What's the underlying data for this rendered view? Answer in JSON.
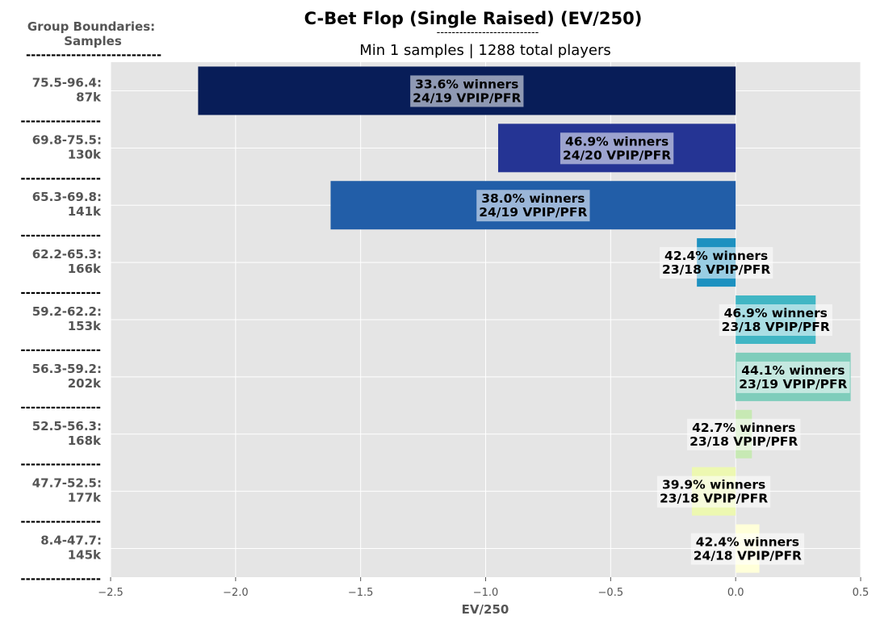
{
  "chart_data": {
    "type": "bar",
    "orientation": "horizontal",
    "title": "C-Bet Flop (Single Raised) (EV/250)",
    "title_underline": "---------------------------",
    "subtitle": "Min 1 samples | 1288 total players",
    "ylabel_title": "Group Boundaries:",
    "ylabel_subtitle": "Samples",
    "ylabel_underline": "---------------------------",
    "separator": "----------------",
    "xlabel": "EV/250",
    "xlim": [
      -2.5,
      0.5
    ],
    "xticks": [
      "-2.5",
      "-2.0",
      "-1.5",
      "-1.0",
      "-0.5",
      "0.0",
      "0.5"
    ],
    "grid": true,
    "categories": [
      {
        "range": "75.5-96.4:",
        "samples": "87k",
        "value": -2.15,
        "color": "#081d58",
        "winners": "33.6% winners",
        "vpip": "24/19 VPIP/PFR"
      },
      {
        "range": "69.8-75.5:",
        "samples": "130k",
        "value": -0.95,
        "color": "#253494",
        "winners": "46.9% winners",
        "vpip": "24/20 VPIP/PFR"
      },
      {
        "range": "65.3-69.8:",
        "samples": "141k",
        "value": -1.62,
        "color": "#225ea8",
        "winners": "38.0% winners",
        "vpip": "24/19 VPIP/PFR"
      },
      {
        "range": "62.2-65.3:",
        "samples": "166k",
        "value": -0.155,
        "color": "#1d91c0",
        "winners": "42.4% winners",
        "vpip": "23/18 VPIP/PFR"
      },
      {
        "range": "59.2-62.2:",
        "samples": "153k",
        "value": 0.32,
        "color": "#41b6c4",
        "winners": "46.9% winners",
        "vpip": "23/18 VPIP/PFR"
      },
      {
        "range": "56.3-59.2:",
        "samples": "202k",
        "value": 0.46,
        "color": "#7fcdbb",
        "winners": "44.1% winners",
        "vpip": "23/19 VPIP/PFR"
      },
      {
        "range": "52.5-56.3:",
        "samples": "168k",
        "value": 0.065,
        "color": "#c7e9b4",
        "winners": "42.7% winners",
        "vpip": "23/18 VPIP/PFR"
      },
      {
        "range": "47.7-52.5:",
        "samples": "177k",
        "value": -0.175,
        "color": "#edf8b1",
        "winners": "39.9% winners",
        "vpip": "23/18 VPIP/PFR"
      },
      {
        "range": "8.4-47.7:",
        "samples": "145k",
        "value": 0.095,
        "color": "#ffffd9",
        "winners": "42.4% winners",
        "vpip": "24/18 VPIP/PFR"
      }
    ]
  }
}
